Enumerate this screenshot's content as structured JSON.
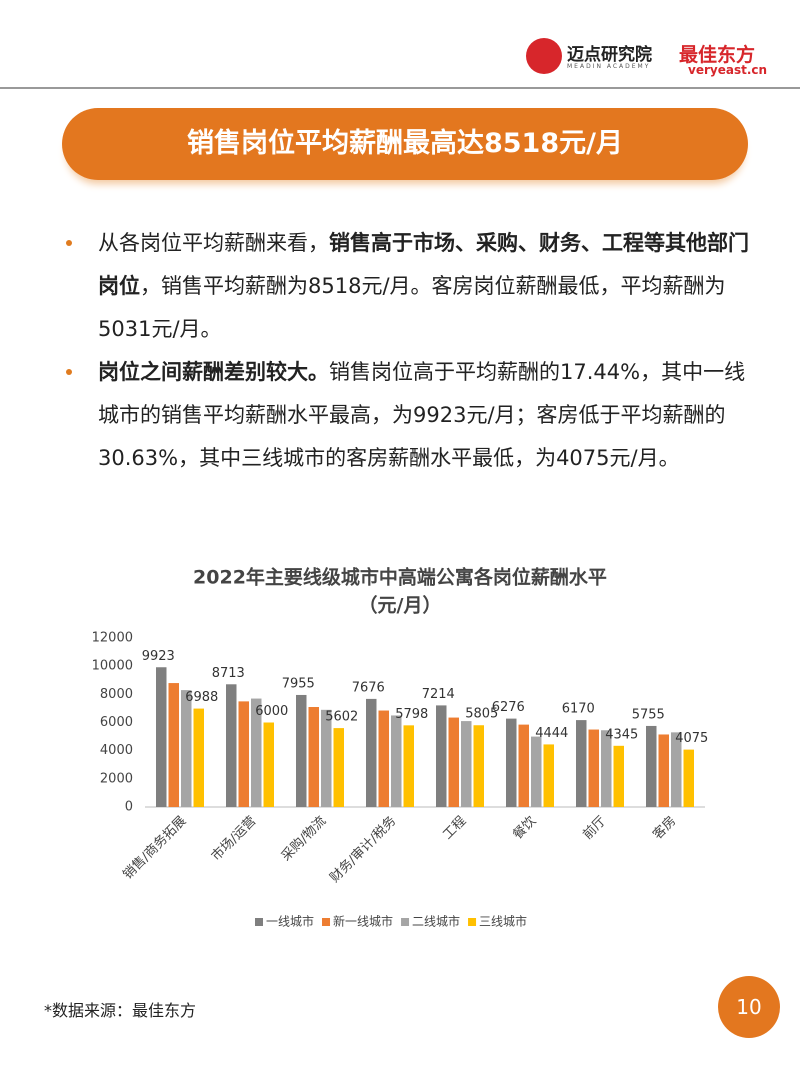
{
  "header": {
    "logo1_name": "迈点研究院",
    "logo1_sub": "MEADIN ACADEMY",
    "logo2_name": "最佳东方",
    "logo2_sub": "veryeast.cn"
  },
  "banner": {
    "title": "销售岗位平均薪酬最高达8518元/月"
  },
  "bullets": [
    [
      {
        "text": "从各岗位平均薪酬来看，",
        "bold": false
      },
      {
        "text": "销售高于市场、采购、财务、工程等其他部门岗位",
        "bold": true
      },
      {
        "text": "，销售平均薪酬为8518元/月。客房岗位薪酬最低，平均薪酬为5031元/月。",
        "bold": false
      }
    ],
    [
      {
        "text": "岗位之间薪酬差别较大。",
        "bold": true
      },
      {
        "text": "销售岗位高于平均薪酬的17.44%，其中一线城市的销售平均薪酬水平最高，为9923元/月；客房低于平均薪酬的30.63%，其中三线城市的客房薪酬水平最低，为4075元/月。",
        "bold": false
      }
    ]
  ],
  "chart_data": {
    "type": "bar",
    "title": "2022年主要线级城市中高端公寓各岗位薪酬水平",
    "subtitle": "（元/月）",
    "categories": [
      "销售/商务拓展",
      "市场/运营",
      "采购/物流",
      "财务/审计/税务",
      "工程",
      "餐饮",
      "前厅",
      "客房"
    ],
    "series": [
      {
        "name": "一线城市",
        "color": "#7f7f7f",
        "values": [
          9923,
          8713,
          7955,
          7676,
          7214,
          6276,
          6170,
          5755
        ],
        "data_labels": true
      },
      {
        "name": "新一线城市",
        "color": "#ed7d31",
        "values": [
          8800,
          7500,
          7100,
          6850,
          6350,
          5850,
          5500,
          5150
        ],
        "data_labels": false
      },
      {
        "name": "二线城市",
        "color": "#a5a5a5",
        "values": [
          8300,
          7700,
          6900,
          6500,
          6100,
          5000,
          5450,
          5300
        ],
        "data_labels": false
      },
      {
        "name": "三线城市",
        "color": "#ffc000",
        "values": [
          6988,
          6000,
          5602,
          5798,
          5805,
          4444,
          4345,
          4075
        ],
        "data_labels": true
      }
    ],
    "ylim": [
      0,
      12000
    ],
    "yticks": [
      0,
      2000,
      4000,
      6000,
      8000,
      10000,
      12000
    ],
    "grid": false,
    "legend": "bottom"
  },
  "footer": {
    "source": "*数据来源：最佳东方",
    "page": "10"
  }
}
